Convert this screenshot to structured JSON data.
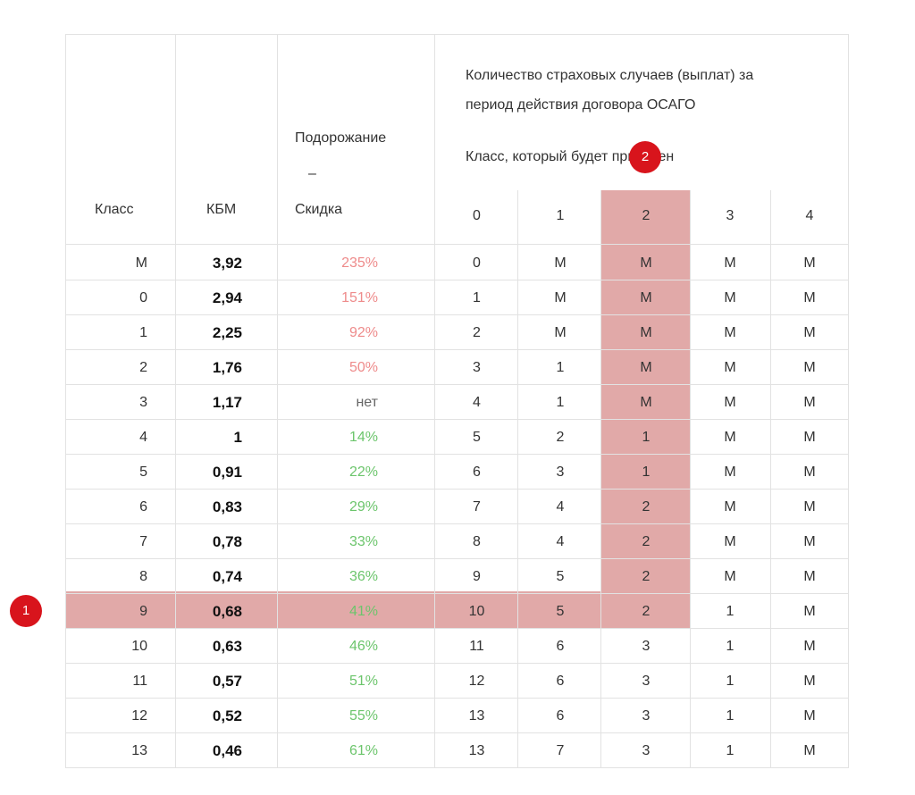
{
  "header": {
    "col_class": "Класс",
    "col_kbm": "КБМ",
    "col_change_line1": "Подорожание",
    "col_change_dash": "–",
    "col_change_line2": "Скидка",
    "claims_title_line1": "Количество страховых случаев (выплат) за",
    "claims_title_line2": "период действия договора ОСАГО",
    "assigned_class_label": "Класс, который будет присвоен",
    "claims_counts": [
      "0",
      "1",
      "2",
      "3",
      "4"
    ]
  },
  "rows": [
    {
      "cls": "M",
      "kbm": "3,92",
      "change": "235%",
      "tone": "red",
      "next": [
        "0",
        "M",
        "M",
        "M",
        "M"
      ]
    },
    {
      "cls": "0",
      "kbm": "2,94",
      "change": "151%",
      "tone": "red",
      "next": [
        "1",
        "M",
        "M",
        "M",
        "M"
      ]
    },
    {
      "cls": "1",
      "kbm": "2,25",
      "change": "92%",
      "tone": "red",
      "next": [
        "2",
        "M",
        "M",
        "M",
        "M"
      ]
    },
    {
      "cls": "2",
      "kbm": "1,76",
      "change": "50%",
      "tone": "red",
      "next": [
        "3",
        "1",
        "M",
        "M",
        "M"
      ]
    },
    {
      "cls": "3",
      "kbm": "1,17",
      "change": "нет",
      "tone": "grey",
      "next": [
        "4",
        "1",
        "M",
        "M",
        "M"
      ]
    },
    {
      "cls": "4",
      "kbm": "1",
      "change": "14%",
      "tone": "green",
      "next": [
        "5",
        "2",
        "1",
        "M",
        "M"
      ]
    },
    {
      "cls": "5",
      "kbm": "0,91",
      "change": "22%",
      "tone": "green",
      "next": [
        "6",
        "3",
        "1",
        "M",
        "M"
      ]
    },
    {
      "cls": "6",
      "kbm": "0,83",
      "change": "29%",
      "tone": "green",
      "next": [
        "7",
        "4",
        "2",
        "M",
        "M"
      ]
    },
    {
      "cls": "7",
      "kbm": "0,78",
      "change": "33%",
      "tone": "green",
      "next": [
        "8",
        "4",
        "2",
        "M",
        "M"
      ]
    },
    {
      "cls": "8",
      "kbm": "0,74",
      "change": "36%",
      "tone": "green",
      "next": [
        "9",
        "5",
        "2",
        "M",
        "M"
      ]
    },
    {
      "cls": "9",
      "kbm": "0,68",
      "change": "41%",
      "tone": "green",
      "next": [
        "10",
        "5",
        "2",
        "1",
        "M"
      ]
    },
    {
      "cls": "10",
      "kbm": "0,63",
      "change": "46%",
      "tone": "green",
      "next": [
        "11",
        "6",
        "3",
        "1",
        "M"
      ]
    },
    {
      "cls": "11",
      "kbm": "0,57",
      "change": "51%",
      "tone": "green",
      "next": [
        "12",
        "6",
        "3",
        "1",
        "M"
      ]
    },
    {
      "cls": "12",
      "kbm": "0,52",
      "change": "55%",
      "tone": "green",
      "next": [
        "13",
        "6",
        "3",
        "1",
        "M"
      ]
    },
    {
      "cls": "13",
      "kbm": "0,46",
      "change": "61%",
      "tone": "green",
      "next": [
        "13",
        "7",
        "3",
        "1",
        "M"
      ]
    }
  ],
  "highlight": {
    "row_index": 10,
    "claims_column": 2,
    "color": "#e1a9a8"
  },
  "badges": {
    "row_badge": "1",
    "column_badge": "2",
    "color": "#d8141c"
  }
}
